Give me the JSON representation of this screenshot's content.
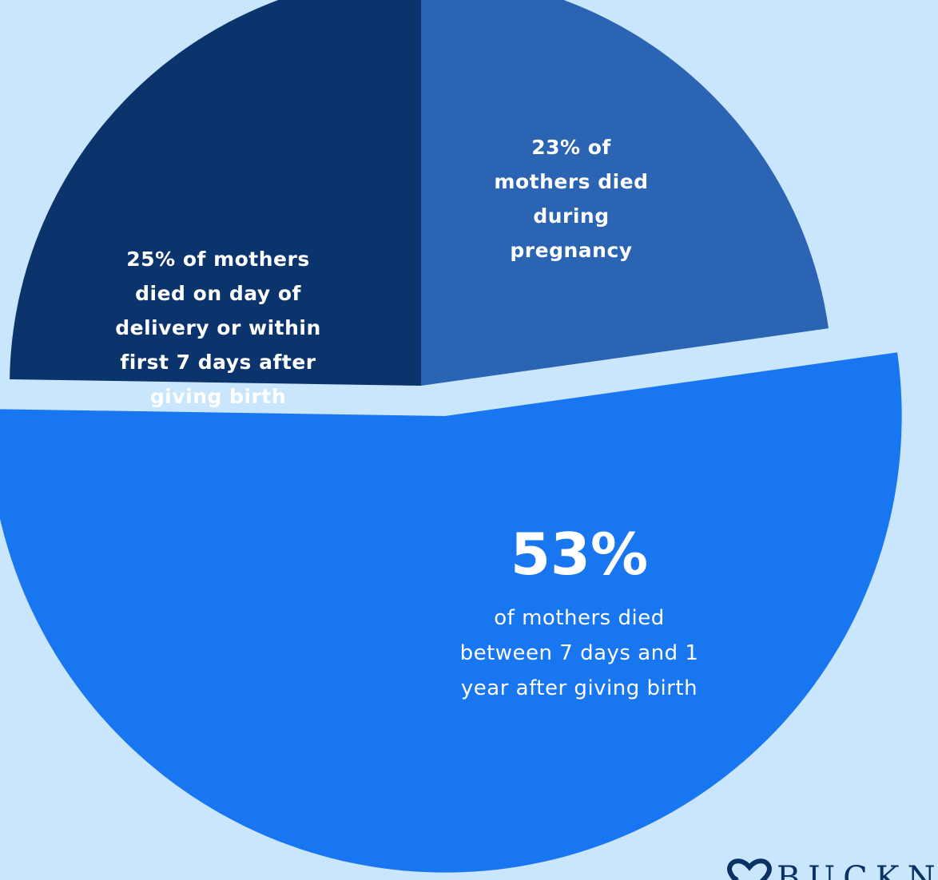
{
  "chart_data": {
    "type": "pie",
    "title": "",
    "slices": [
      {
        "value": 23,
        "label": "23% of\nmothers died\nduring\npregnancy",
        "color": "#2b64b3",
        "exploded": false
      },
      {
        "value": 53,
        "label_pct": "53%",
        "label_desc": "of mothers died\nbetween 7 days and 1\nyear after giving birth",
        "color": "#1976f1",
        "exploded": true
      },
      {
        "value": 25,
        "label": "25% of mothers\ndied on day of\ndelivery or within\nfirst 7 days after\ngiving birth",
        "color": "#0b346d",
        "exploded": false
      }
    ],
    "start_angle_deg": 0,
    "direction": "clockwise",
    "legend": "none"
  },
  "colors": {
    "background": "#c9e6fd",
    "label_text": "#ffffff",
    "logo": "#0a3264"
  },
  "logo": {
    "text": "BUCKN",
    "icon": "heart-outline-icon"
  }
}
